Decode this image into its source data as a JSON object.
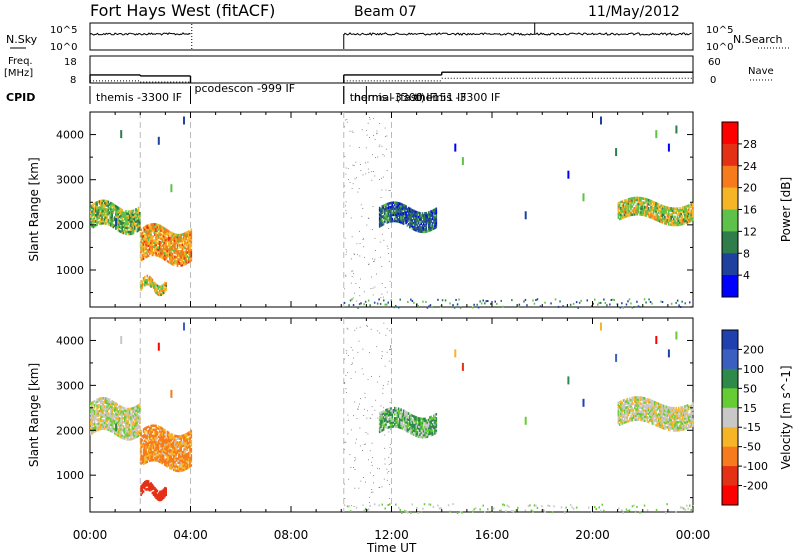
{
  "header": {
    "title": "Fort Hays West (fitACF)",
    "beam": "Beam 07",
    "date": "11/May/2012"
  },
  "top_panels": {
    "nsky_label": "N.Sky",
    "nsky_ticks": [
      "10^5",
      "10^0"
    ],
    "nsky_right_ticks": [
      "10^5",
      "10^0"
    ],
    "nsearch_label": "N.Search",
    "freq_label": "Freq.",
    "freq_unit": "[MHz]",
    "freq_ticks": [
      "18",
      "8"
    ],
    "nave_ticks": [
      "60",
      "0"
    ],
    "nave_label": "Nave",
    "cpid_label": "CPID",
    "cpid_entries": [
      {
        "label": "themis -3300 IF",
        "start_h": 0.0
      },
      {
        "label": "pcodescon -999 IF",
        "start_h": 4.0
      },
      {
        "label": "normal (fast) -151 IF",
        "start_h": 10.1
      },
      {
        "label": "themis -3300 IF",
        "start_h": 10.1
      },
      {
        "label": "themis -3300 IF",
        "start_h": 11.0
      }
    ],
    "freq_segments": [
      {
        "x": [
          0.0,
          2.0
        ],
        "freq_mhz": 11.0
      },
      {
        "x": [
          2.0,
          4.0
        ],
        "freq_mhz": 10.6
      },
      {
        "x": [
          10.1,
          14.0
        ],
        "freq_mhz": 11.0
      },
      {
        "x": [
          14.0,
          24.0
        ],
        "freq_mhz": 12.0
      }
    ],
    "data_gaps_h": [
      [
        4.0,
        10.1
      ]
    ]
  },
  "chart_data": [
    {
      "type": "heatmap",
      "name": "power",
      "ylabel": "Slant Range [km]",
      "xlabel": "Time UT",
      "xlim": [
        0,
        24
      ],
      "ylim": [
        180,
        4500
      ],
      "x_ticks": [
        "00:00",
        "04:00",
        "08:00",
        "12:00",
        "16:00",
        "20:00",
        "00:00"
      ],
      "y_ticks": [
        1000,
        2000,
        3000,
        4000
      ],
      "colorbar": {
        "label": "Power [dB]",
        "ticks": [
          "4",
          "8",
          "12",
          "16",
          "20",
          "24",
          "28"
        ],
        "colors": [
          "#0000ff",
          "#2040a0",
          "#2e7d4a",
          "#5ec24a",
          "#f6b526",
          "#f57b1c",
          "#e43014",
          "#ff0000"
        ]
      },
      "echo_bands": [
        {
          "t": [
            0.0,
            2.0
          ],
          "range": [
            1900,
            2400
          ],
          "power": 12
        },
        {
          "t": [
            2.0,
            4.0
          ],
          "range": [
            1200,
            1900
          ],
          "power": 18
        },
        {
          "t": [
            2.0,
            3.0
          ],
          "range": [
            550,
            750
          ],
          "power": 14
        },
        {
          "t": [
            11.5,
            13.8
          ],
          "range": [
            1950,
            2400
          ],
          "power": 6
        },
        {
          "t": [
            21.0,
            24.0
          ],
          "range": [
            2100,
            2500
          ],
          "power": 14
        }
      ]
    },
    {
      "type": "heatmap",
      "name": "velocity",
      "ylabel": "Slant Range [km]",
      "xlabel": "Time UT",
      "xlim": [
        0,
        24
      ],
      "ylim": [
        180,
        4500
      ],
      "x_ticks": [
        "00:00",
        "04:00",
        "08:00",
        "12:00",
        "16:00",
        "20:00",
        "00:00"
      ],
      "y_ticks": [
        1000,
        2000,
        3000,
        4000
      ],
      "colorbar": {
        "label": "Velocity [m s^-1]",
        "ticks": [
          "200",
          "100",
          "50",
          "15",
          "-15",
          "-50",
          "-100",
          "-200"
        ],
        "colors": [
          "#2040b0",
          "#3a5fc0",
          "#2e8a4a",
          "#66cc33",
          "#c8c8c8",
          "#f6b526",
          "#f57b1c",
          "#e43014",
          "#ff0000"
        ]
      },
      "echo_bands": [
        {
          "t": [
            0.0,
            2.0
          ],
          "range": [
            1900,
            2600
          ],
          "velocity": 0
        },
        {
          "t": [
            2.0,
            4.0
          ],
          "range": [
            1200,
            2000
          ],
          "velocity": -40
        },
        {
          "t": [
            2.0,
            3.0
          ],
          "range": [
            550,
            750
          ],
          "velocity": -120
        },
        {
          "t": [
            11.5,
            13.8
          ],
          "range": [
            1950,
            2400
          ],
          "velocity": 30
        },
        {
          "t": [
            21.0,
            24.0
          ],
          "range": [
            2100,
            2600
          ],
          "velocity": 0
        }
      ]
    }
  ]
}
